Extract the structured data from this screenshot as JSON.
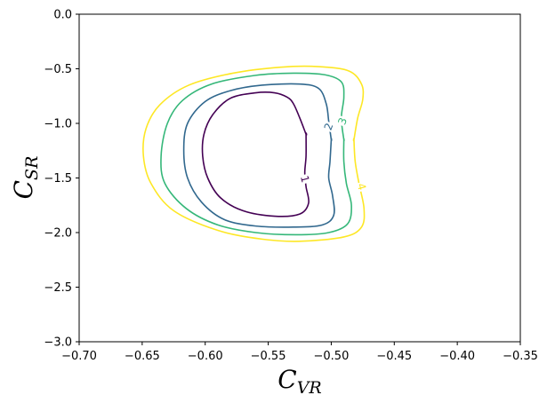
{
  "chart_data": {
    "type": "contour",
    "title": "",
    "xlabel": {
      "main": "C",
      "sub": "VR"
    },
    "ylabel": {
      "main": "C",
      "sub": "SR"
    },
    "xlim": [
      -0.7,
      -0.35
    ],
    "ylim": [
      -3.0,
      0.0
    ],
    "xticks": [
      -0.7,
      -0.65,
      -0.6,
      -0.55,
      -0.5,
      -0.45,
      -0.4,
      -0.35
    ],
    "xtick_labels": [
      "−0.70",
      "−0.65",
      "−0.60",
      "−0.55",
      "−0.50",
      "−0.45",
      "−0.40",
      "−0.35"
    ],
    "yticks": [
      0.0,
      -0.5,
      -1.0,
      -1.5,
      -2.0,
      -2.5,
      -3.0
    ],
    "ytick_labels": [
      "0.0",
      "−0.5",
      "−1.0",
      "−1.5",
      "−2.0",
      "−2.5",
      "−3.0"
    ],
    "grid": false,
    "levels": [
      {
        "label": "1",
        "color": "#440154",
        "label_at": [
          -0.521,
          -1.51
        ],
        "label_rotation": 75,
        "points": [
          [
            -0.52,
            -1.1
          ],
          [
            -0.525,
            -0.95
          ],
          [
            -0.53,
            -0.82
          ],
          [
            -0.535,
            -0.76
          ],
          [
            -0.545,
            -0.72
          ],
          [
            -0.56,
            -0.72
          ],
          [
            -0.58,
            -0.77
          ],
          [
            -0.594,
            -0.92
          ],
          [
            -0.601,
            -1.1
          ],
          [
            -0.602,
            -1.3
          ],
          [
            -0.598,
            -1.5
          ],
          [
            -0.588,
            -1.68
          ],
          [
            -0.57,
            -1.8
          ],
          [
            -0.545,
            -1.85
          ],
          [
            -0.525,
            -1.83
          ],
          [
            -0.518,
            -1.73
          ],
          [
            -0.52,
            -1.58
          ],
          [
            -0.521,
            -1.45
          ],
          [
            -0.52,
            -1.3
          ],
          [
            -0.52,
            -1.1
          ]
        ]
      },
      {
        "label": "2",
        "color": "#31688e",
        "label_at": [
          -0.502,
          -1.03
        ],
        "label_rotation": -70,
        "points": [
          [
            -0.5,
            -1.15
          ],
          [
            -0.502,
            -0.98
          ],
          [
            -0.504,
            -0.82
          ],
          [
            -0.51,
            -0.68
          ],
          [
            -0.525,
            -0.64
          ],
          [
            -0.555,
            -0.65
          ],
          [
            -0.58,
            -0.7
          ],
          [
            -0.6,
            -0.8
          ],
          [
            -0.614,
            -1.0
          ],
          [
            -0.617,
            -1.25
          ],
          [
            -0.614,
            -1.5
          ],
          [
            -0.603,
            -1.72
          ],
          [
            -0.585,
            -1.88
          ],
          [
            -0.56,
            -1.94
          ],
          [
            -0.53,
            -1.95
          ],
          [
            -0.507,
            -1.93
          ],
          [
            -0.498,
            -1.84
          ],
          [
            -0.499,
            -1.66
          ],
          [
            -0.502,
            -1.5
          ],
          [
            -0.501,
            -1.35
          ],
          [
            -0.5,
            -1.15
          ]
        ]
      },
      {
        "label": "3",
        "color": "#35b779",
        "label_at": [
          -0.491,
          -0.98
        ],
        "label_rotation": -70,
        "points": [
          [
            -0.49,
            -1.15
          ],
          [
            -0.492,
            -0.95
          ],
          [
            -0.49,
            -0.76
          ],
          [
            -0.492,
            -0.62
          ],
          [
            -0.505,
            -0.555
          ],
          [
            -0.53,
            -0.54
          ],
          [
            -0.56,
            -0.56
          ],
          [
            -0.595,
            -0.64
          ],
          [
            -0.618,
            -0.79
          ],
          [
            -0.63,
            -1.0
          ],
          [
            -0.635,
            -1.3
          ],
          [
            -0.632,
            -1.55
          ],
          [
            -0.615,
            -1.78
          ],
          [
            -0.59,
            -1.93
          ],
          [
            -0.56,
            -2.0
          ],
          [
            -0.528,
            -2.02
          ],
          [
            -0.502,
            -2.0
          ],
          [
            -0.487,
            -1.92
          ],
          [
            -0.484,
            -1.75
          ],
          [
            -0.488,
            -1.55
          ],
          [
            -0.49,
            -1.35
          ],
          [
            -0.49,
            -1.15
          ]
        ]
      },
      {
        "label": "4",
        "color": "#fde725",
        "label_at": [
          -0.476,
          -1.58
        ],
        "label_rotation": 75,
        "points": [
          [
            -0.482,
            -1.15
          ],
          [
            -0.479,
            -0.95
          ],
          [
            -0.475,
            -0.78
          ],
          [
            -0.476,
            -0.64
          ],
          [
            -0.486,
            -0.52
          ],
          [
            -0.51,
            -0.48
          ],
          [
            -0.54,
            -0.485
          ],
          [
            -0.578,
            -0.54
          ],
          [
            -0.613,
            -0.65
          ],
          [
            -0.636,
            -0.83
          ],
          [
            -0.647,
            -1.05
          ],
          [
            -0.649,
            -1.3
          ],
          [
            -0.643,
            -1.55
          ],
          [
            -0.625,
            -1.8
          ],
          [
            -0.59,
            -1.98
          ],
          [
            -0.555,
            -2.06
          ],
          [
            -0.525,
            -2.08
          ],
          [
            -0.49,
            -2.04
          ],
          [
            -0.476,
            -1.95
          ],
          [
            -0.474,
            -1.78
          ],
          [
            -0.478,
            -1.55
          ],
          [
            -0.481,
            -1.35
          ],
          [
            -0.482,
            -1.15
          ]
        ]
      }
    ]
  }
}
